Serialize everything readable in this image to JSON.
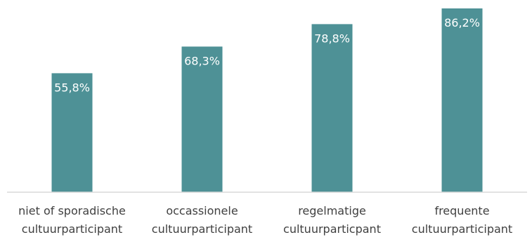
{
  "chart_data": {
    "type": "bar",
    "categories": [
      [
        "niet of sporadische",
        "cultuurparticipant"
      ],
      [
        "occassionele",
        "cultuurparticipant"
      ],
      [
        "regelmatige",
        "cultuurparticpant"
      ],
      [
        "frequente",
        "cultuurparticipant"
      ]
    ],
    "values": [
      55.8,
      68.3,
      78.8,
      86.2
    ],
    "data_labels": [
      "55,8%",
      "68,3%",
      "78,8%",
      "86,2%"
    ],
    "ylim": [
      0,
      100
    ],
    "title": "",
    "xlabel": "",
    "ylabel": "",
    "grid": false,
    "legend": "none",
    "bar_color": "#4E9196",
    "axis_color": "#D9D9D9"
  }
}
